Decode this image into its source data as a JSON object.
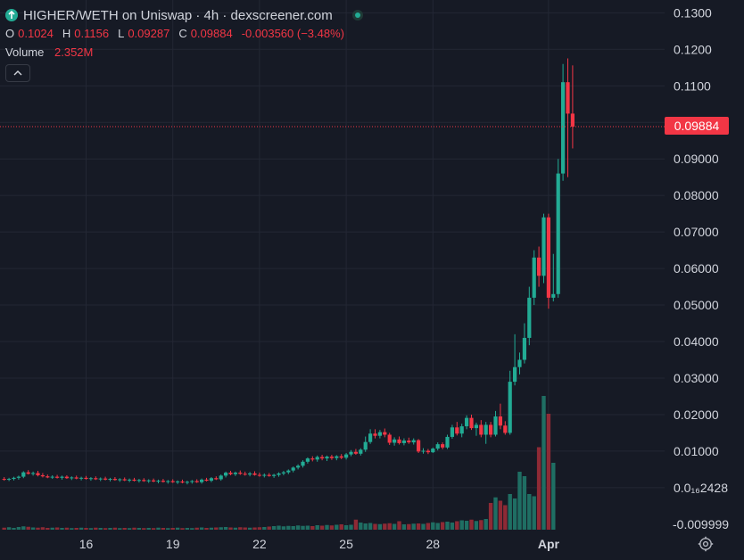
{
  "header": {
    "title": "HIGHER/WETH on Uniswap · 4h · dexscreener.com",
    "icon": "arrow-up-icon",
    "status_icon": "live-dot-icon"
  },
  "ohlc": {
    "open_label": "O",
    "open": "0.1024",
    "high_label": "H",
    "high": "0.1156",
    "low_label": "L",
    "low": "0.09287",
    "close_label": "C",
    "close": "0.09884",
    "change": "-0.003560 (−3.48%)"
  },
  "volume": {
    "label": "Volume",
    "value": "2.352M"
  },
  "last_price_tag": "0.09884",
  "colors": {
    "background": "#161a25",
    "up": "#22ab94",
    "down": "#f23645",
    "grid": "#232734",
    "text": "#d1d4dc"
  },
  "chart_data": {
    "type": "candlestick",
    "title": "HIGHER/WETH on Uniswap · 4h · dexscreener.com",
    "interval": "4h",
    "x_axis": {
      "ticks": [
        {
          "label": "16",
          "index": 17
        },
        {
          "label": "19",
          "index": 35
        },
        {
          "label": "22",
          "index": 53
        },
        {
          "label": "25",
          "index": 71
        },
        {
          "label": "28",
          "index": 89
        },
        {
          "label": "Apr",
          "index": 113,
          "bold": true
        }
      ]
    },
    "y_axis": {
      "min": -0.0115,
      "max": 0.1335,
      "tick_values": [
        0.13,
        0.12,
        0.11,
        0.1,
        0.09,
        0.08,
        0.07,
        0.06,
        0.05,
        0.04,
        0.03,
        0.02,
        0.01,
        0.0
      ],
      "tick_labels": [
        "0.1300",
        "0.1200",
        "0.1100",
        "",
        "0.09000",
        "0.08000",
        "0.07000",
        "0.06000",
        "0.05000",
        "0.04000",
        "0.03000",
        "0.02000",
        "0.01000",
        "0.0₁₆2428"
      ],
      "bottom_value": -0.009999,
      "bottom_label": "-0.009999"
    },
    "last_price": 0.09884,
    "grid": true,
    "n_slots": 125,
    "candles": [
      {
        "o": 0.0024,
        "h": 0.0029,
        "l": 0.0019,
        "c": 0.0022
      },
      {
        "o": 0.0022,
        "h": 0.0027,
        "l": 0.0018,
        "c": 0.0024
      },
      {
        "o": 0.0024,
        "h": 0.003,
        "l": 0.002,
        "c": 0.0027
      },
      {
        "o": 0.0027,
        "h": 0.0033,
        "l": 0.0022,
        "c": 0.003
      },
      {
        "o": 0.003,
        "h": 0.0045,
        "l": 0.0026,
        "c": 0.0042
      },
      {
        "o": 0.0042,
        "h": 0.0048,
        "l": 0.0036,
        "c": 0.0038
      },
      {
        "o": 0.0038,
        "h": 0.0044,
        "l": 0.0033,
        "c": 0.004
      },
      {
        "o": 0.004,
        "h": 0.0046,
        "l": 0.0031,
        "c": 0.0034
      },
      {
        "o": 0.0034,
        "h": 0.004,
        "l": 0.0028,
        "c": 0.0031
      },
      {
        "o": 0.0031,
        "h": 0.0036,
        "l": 0.0026,
        "c": 0.0028
      },
      {
        "o": 0.0028,
        "h": 0.0034,
        "l": 0.0024,
        "c": 0.003
      },
      {
        "o": 0.003,
        "h": 0.0035,
        "l": 0.0025,
        "c": 0.0027
      },
      {
        "o": 0.0027,
        "h": 0.0033,
        "l": 0.0022,
        "c": 0.003
      },
      {
        "o": 0.003,
        "h": 0.0034,
        "l": 0.0024,
        "c": 0.0026
      },
      {
        "o": 0.0026,
        "h": 0.0031,
        "l": 0.0021,
        "c": 0.0028
      },
      {
        "o": 0.0028,
        "h": 0.0033,
        "l": 0.0023,
        "c": 0.0025
      },
      {
        "o": 0.0025,
        "h": 0.003,
        "l": 0.002,
        "c": 0.0027
      },
      {
        "o": 0.0027,
        "h": 0.0032,
        "l": 0.0022,
        "c": 0.0024
      },
      {
        "o": 0.0024,
        "h": 0.0029,
        "l": 0.0019,
        "c": 0.0026
      },
      {
        "o": 0.0026,
        "h": 0.0031,
        "l": 0.0021,
        "c": 0.0023
      },
      {
        "o": 0.0023,
        "h": 0.0028,
        "l": 0.0018,
        "c": 0.0025
      },
      {
        "o": 0.0025,
        "h": 0.003,
        "l": 0.002,
        "c": 0.0022
      },
      {
        "o": 0.0022,
        "h": 0.0027,
        "l": 0.0017,
        "c": 0.0024
      },
      {
        "o": 0.0024,
        "h": 0.0029,
        "l": 0.0019,
        "c": 0.0021
      },
      {
        "o": 0.0021,
        "h": 0.0026,
        "l": 0.0016,
        "c": 0.0023
      },
      {
        "o": 0.0023,
        "h": 0.0028,
        "l": 0.0018,
        "c": 0.002
      },
      {
        "o": 0.002,
        "h": 0.0025,
        "l": 0.0015,
        "c": 0.0022
      },
      {
        "o": 0.0022,
        "h": 0.0027,
        "l": 0.0017,
        "c": 0.0019
      },
      {
        "o": 0.0019,
        "h": 0.0024,
        "l": 0.0014,
        "c": 0.0021
      },
      {
        "o": 0.0021,
        "h": 0.0026,
        "l": 0.0016,
        "c": 0.0018
      },
      {
        "o": 0.0018,
        "h": 0.0023,
        "l": 0.0013,
        "c": 0.002
      },
      {
        "o": 0.002,
        "h": 0.0025,
        "l": 0.0015,
        "c": 0.0017
      },
      {
        "o": 0.0017,
        "h": 0.0022,
        "l": 0.0012,
        "c": 0.0019
      },
      {
        "o": 0.0019,
        "h": 0.0024,
        "l": 0.0014,
        "c": 0.0016
      },
      {
        "o": 0.0016,
        "h": 0.0021,
        "l": 0.0011,
        "c": 0.0018
      },
      {
        "o": 0.0018,
        "h": 0.0023,
        "l": 0.0013,
        "c": 0.0015
      },
      {
        "o": 0.0015,
        "h": 0.002,
        "l": 0.001,
        "c": 0.0017
      },
      {
        "o": 0.0017,
        "h": 0.0022,
        "l": 0.0012,
        "c": 0.0014
      },
      {
        "o": 0.0014,
        "h": 0.0019,
        "l": 0.0009,
        "c": 0.0016
      },
      {
        "o": 0.0016,
        "h": 0.0021,
        "l": 0.0011,
        "c": 0.0018
      },
      {
        "o": 0.0018,
        "h": 0.0023,
        "l": 0.0013,
        "c": 0.0015
      },
      {
        "o": 0.0015,
        "h": 0.0025,
        "l": 0.0011,
        "c": 0.0022
      },
      {
        "o": 0.0022,
        "h": 0.0027,
        "l": 0.0017,
        "c": 0.0019
      },
      {
        "o": 0.0019,
        "h": 0.0029,
        "l": 0.0015,
        "c": 0.0026
      },
      {
        "o": 0.0026,
        "h": 0.0031,
        "l": 0.0021,
        "c": 0.0023
      },
      {
        "o": 0.0023,
        "h": 0.0036,
        "l": 0.0019,
        "c": 0.0033
      },
      {
        "o": 0.0033,
        "h": 0.0044,
        "l": 0.0028,
        "c": 0.0041
      },
      {
        "o": 0.0041,
        "h": 0.0046,
        "l": 0.0034,
        "c": 0.0037
      },
      {
        "o": 0.0037,
        "h": 0.0044,
        "l": 0.0032,
        "c": 0.0041
      },
      {
        "o": 0.0041,
        "h": 0.0047,
        "l": 0.0035,
        "c": 0.0038
      },
      {
        "o": 0.0038,
        "h": 0.0044,
        "l": 0.0033,
        "c": 0.0036
      },
      {
        "o": 0.0036,
        "h": 0.0043,
        "l": 0.0031,
        "c": 0.0039
      },
      {
        "o": 0.0039,
        "h": 0.0045,
        "l": 0.0033,
        "c": 0.0035
      },
      {
        "o": 0.0035,
        "h": 0.0041,
        "l": 0.003,
        "c": 0.0033
      },
      {
        "o": 0.0033,
        "h": 0.0039,
        "l": 0.0028,
        "c": 0.0035
      },
      {
        "o": 0.0035,
        "h": 0.004,
        "l": 0.003,
        "c": 0.0032
      },
      {
        "o": 0.0032,
        "h": 0.0038,
        "l": 0.0027,
        "c": 0.0035
      },
      {
        "o": 0.0035,
        "h": 0.0042,
        "l": 0.003,
        "c": 0.0039
      },
      {
        "o": 0.0039,
        "h": 0.0046,
        "l": 0.0034,
        "c": 0.0042
      },
      {
        "o": 0.0042,
        "h": 0.005,
        "l": 0.0037,
        "c": 0.0047
      },
      {
        "o": 0.0047,
        "h": 0.0058,
        "l": 0.0042,
        "c": 0.0055
      },
      {
        "o": 0.0055,
        "h": 0.0064,
        "l": 0.005,
        "c": 0.006
      },
      {
        "o": 0.006,
        "h": 0.0075,
        "l": 0.0055,
        "c": 0.0071
      },
      {
        "o": 0.0071,
        "h": 0.0083,
        "l": 0.0066,
        "c": 0.008
      },
      {
        "o": 0.008,
        "h": 0.0086,
        "l": 0.0072,
        "c": 0.0077
      },
      {
        "o": 0.0077,
        "h": 0.0088,
        "l": 0.0071,
        "c": 0.0084
      },
      {
        "o": 0.0084,
        "h": 0.009,
        "l": 0.0075,
        "c": 0.008
      },
      {
        "o": 0.008,
        "h": 0.0088,
        "l": 0.0073,
        "c": 0.0085
      },
      {
        "o": 0.0085,
        "h": 0.009,
        "l": 0.0076,
        "c": 0.0081
      },
      {
        "o": 0.0081,
        "h": 0.0089,
        "l": 0.0075,
        "c": 0.0086
      },
      {
        "o": 0.0086,
        "h": 0.0092,
        "l": 0.0078,
        "c": 0.0082
      },
      {
        "o": 0.0082,
        "h": 0.0095,
        "l": 0.0077,
        "c": 0.0091
      },
      {
        "o": 0.0091,
        "h": 0.0103,
        "l": 0.0086,
        "c": 0.0098
      },
      {
        "o": 0.0098,
        "h": 0.0106,
        "l": 0.009,
        "c": 0.0093
      },
      {
        "o": 0.0093,
        "h": 0.0108,
        "l": 0.0088,
        "c": 0.0104
      },
      {
        "o": 0.0104,
        "h": 0.014,
        "l": 0.0098,
        "c": 0.0125
      },
      {
        "o": 0.0125,
        "h": 0.016,
        "l": 0.012,
        "c": 0.0148
      },
      {
        "o": 0.0148,
        "h": 0.016,
        "l": 0.0135,
        "c": 0.0142
      },
      {
        "o": 0.0142,
        "h": 0.0158,
        "l": 0.0135,
        "c": 0.0152
      },
      {
        "o": 0.0152,
        "h": 0.0162,
        "l": 0.0138,
        "c": 0.0145
      },
      {
        "o": 0.0145,
        "h": 0.015,
        "l": 0.0117,
        "c": 0.0123
      },
      {
        "o": 0.0123,
        "h": 0.0138,
        "l": 0.0115,
        "c": 0.0132
      },
      {
        "o": 0.0132,
        "h": 0.014,
        "l": 0.0118,
        "c": 0.0122
      },
      {
        "o": 0.0122,
        "h": 0.0135,
        "l": 0.0116,
        "c": 0.0129
      },
      {
        "o": 0.0129,
        "h": 0.0137,
        "l": 0.012,
        "c": 0.0124
      },
      {
        "o": 0.0124,
        "h": 0.0135,
        "l": 0.0118,
        "c": 0.013
      },
      {
        "o": 0.013,
        "h": 0.0133,
        "l": 0.0095,
        "c": 0.0099
      },
      {
        "o": 0.0099,
        "h": 0.0108,
        "l": 0.0093,
        "c": 0.0101
      },
      {
        "o": 0.0101,
        "h": 0.0106,
        "l": 0.0092,
        "c": 0.0097
      },
      {
        "o": 0.0097,
        "h": 0.011,
        "l": 0.0095,
        "c": 0.0107
      },
      {
        "o": 0.0107,
        "h": 0.0124,
        "l": 0.0102,
        "c": 0.0119
      },
      {
        "o": 0.0119,
        "h": 0.0124,
        "l": 0.0105,
        "c": 0.011
      },
      {
        "o": 0.011,
        "h": 0.0145,
        "l": 0.0106,
        "c": 0.0139
      },
      {
        "o": 0.0139,
        "h": 0.0172,
        "l": 0.0134,
        "c": 0.0165
      },
      {
        "o": 0.0165,
        "h": 0.018,
        "l": 0.0143,
        "c": 0.0148
      },
      {
        "o": 0.0148,
        "h": 0.0175,
        "l": 0.0138,
        "c": 0.0168
      },
      {
        "o": 0.0168,
        "h": 0.0198,
        "l": 0.016,
        "c": 0.0191
      },
      {
        "o": 0.0191,
        "h": 0.02,
        "l": 0.0158,
        "c": 0.0163
      },
      {
        "o": 0.0163,
        "h": 0.0178,
        "l": 0.0142,
        "c": 0.0172
      },
      {
        "o": 0.0172,
        "h": 0.0185,
        "l": 0.0138,
        "c": 0.0145
      },
      {
        "o": 0.0145,
        "h": 0.018,
        "l": 0.012,
        "c": 0.0172
      },
      {
        "o": 0.0172,
        "h": 0.018,
        "l": 0.0138,
        "c": 0.0145
      },
      {
        "o": 0.0145,
        "h": 0.021,
        "l": 0.014,
        "c": 0.0195
      },
      {
        "o": 0.0195,
        "h": 0.023,
        "l": 0.016,
        "c": 0.017
      },
      {
        "o": 0.017,
        "h": 0.0182,
        "l": 0.0145,
        "c": 0.015
      },
      {
        "o": 0.015,
        "h": 0.032,
        "l": 0.0145,
        "c": 0.029
      },
      {
        "o": 0.029,
        "h": 0.042,
        "l": 0.028,
        "c": 0.033
      },
      {
        "o": 0.033,
        "h": 0.037,
        "l": 0.031,
        "c": 0.035
      },
      {
        "o": 0.035,
        "h": 0.045,
        "l": 0.034,
        "c": 0.041
      },
      {
        "o": 0.041,
        "h": 0.055,
        "l": 0.039,
        "c": 0.052
      },
      {
        "o": 0.052,
        "h": 0.065,
        "l": 0.05,
        "c": 0.063
      },
      {
        "o": 0.063,
        "h": 0.066,
        "l": 0.055,
        "c": 0.058
      },
      {
        "o": 0.058,
        "h": 0.075,
        "l": 0.056,
        "c": 0.074
      },
      {
        "o": 0.074,
        "h": 0.075,
        "l": 0.049,
        "c": 0.052
      },
      {
        "o": 0.052,
        "h": 0.064,
        "l": 0.051,
        "c": 0.053
      },
      {
        "o": 0.053,
        "h": 0.09,
        "l": 0.052,
        "c": 0.086
      },
      {
        "o": 0.086,
        "h": 0.116,
        "l": 0.084,
        "c": 0.111
      },
      {
        "o": 0.111,
        "h": 0.1175,
        "l": 0.085,
        "c": 0.1024
      },
      {
        "o": 0.1024,
        "h": 0.1156,
        "l": 0.09287,
        "c": 0.09884
      }
    ],
    "volume": [
      0.9,
      1.1,
      0.8,
      1.2,
      1.5,
      1.3,
      1.0,
      0.9,
      1.1,
      0.8,
      0.9,
      1.0,
      0.8,
      0.9,
      0.7,
      0.8,
      0.9,
      0.8,
      0.7,
      0.9,
      0.8,
      0.7,
      0.8,
      0.9,
      0.7,
      0.8,
      0.7,
      0.9,
      0.8,
      0.7,
      0.8,
      0.7,
      0.9,
      0.8,
      0.7,
      0.8,
      0.9,
      0.7,
      0.8,
      0.7,
      0.9,
      1.0,
      0.8,
      0.9,
      1.0,
      1.1,
      1.2,
      1.0,
      0.9,
      1.1,
      1.0,
      0.9,
      1.0,
      1.1,
      1.2,
      1.4,
      1.6,
      1.8,
      1.5,
      1.7,
      1.6,
      1.9,
      1.7,
      1.8,
      1.6,
      2.0,
      1.8,
      2.1,
      1.9,
      2.2,
      2.4,
      2.0,
      2.2,
      4.5,
      3.2,
      2.8,
      3.0,
      2.6,
      2.5,
      2.7,
      2.9,
      2.6,
      3.8,
      2.4,
      2.5,
      2.7,
      2.8,
      2.6,
      3.0,
      3.3,
      3.0,
      3.4,
      3.6,
      3.2,
      3.8,
      4.2,
      4.0,
      4.5,
      3.9,
      4.3,
      4.8,
      12.0,
      14.5,
      13.0,
      11.0,
      16.0,
      14.0,
      26.0,
      24.0,
      16.0,
      15.0,
      37.0,
      60.0,
      52.0,
      30.0
    ]
  }
}
